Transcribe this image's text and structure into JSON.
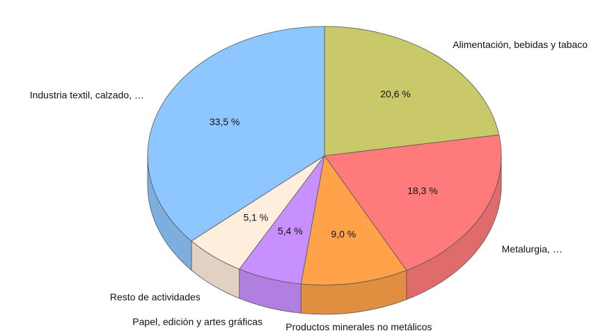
{
  "chart_data": {
    "type": "pie3d",
    "categories": [
      "Alimentación, bebidas y tabaco",
      "Metalurgia, …",
      "Productos minerales no metálicos",
      "Papel, edición y artes gráficas",
      "Resto de actividades",
      "Industria textil, calzado, …"
    ],
    "values": [
      20.6,
      18.3,
      9.0,
      5.4,
      5.1,
      33.5
    ],
    "value_labels": [
      "20,6 %",
      "18,3 %",
      "9,0 %",
      "5,4 %",
      "5,1 %",
      "33,5 %"
    ],
    "colors": [
      "#c9c96a",
      "#ff7a7a",
      "#ffa24a",
      "#c890ff",
      "#ffeedd",
      "#8ec6ff"
    ]
  }
}
